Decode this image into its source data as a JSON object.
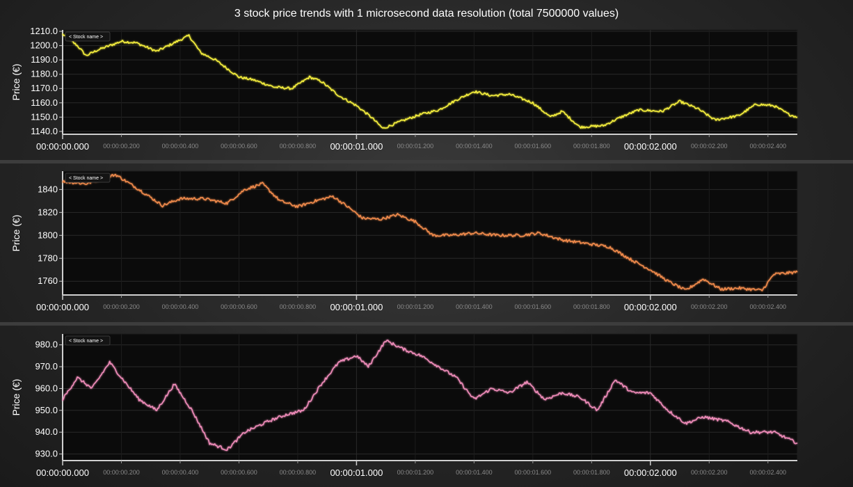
{
  "title": "3 stock price trends with 1 microsecond data resolution (total 7500000 values)",
  "colors": {
    "background": "#262626",
    "plot_background": "#0b0b0b",
    "grid": "#2a2a2a",
    "axis": "#cfcfcf",
    "separator": "#3c3c3c"
  },
  "chart_data": [
    {
      "type": "line",
      "ylabel": "Price (€)",
      "legend_label": "< Stock name >",
      "legend_position": "top-left",
      "grid": true,
      "color": "#f5ef3c",
      "xlim": [
        0,
        2.5
      ],
      "ylim": [
        1138,
        1211
      ],
      "yticks": [
        1140.0,
        1150.0,
        1160.0,
        1170.0,
        1180.0,
        1190.0,
        1200.0,
        1210.0
      ],
      "ytick_labels": [
        "1140.0",
        "1150.0",
        "1160.0",
        "1170.0",
        "1180.0",
        "1190.0",
        "1200.0",
        "1210.0"
      ],
      "x": [
        0,
        0.05,
        0.08,
        0.12,
        0.2,
        0.25,
        0.32,
        0.38,
        0.43,
        0.47,
        0.52,
        0.56,
        0.6,
        0.65,
        0.72,
        0.78,
        0.84,
        0.88,
        0.94,
        1.0,
        1.05,
        1.09,
        1.15,
        1.22,
        1.28,
        1.34,
        1.4,
        1.46,
        1.52,
        1.6,
        1.66,
        1.7,
        1.76,
        1.84,
        1.9,
        1.96,
        2.04,
        2.1,
        2.16,
        2.22,
        2.3,
        2.36,
        2.42,
        2.47,
        2.5
      ],
      "y": [
        1208,
        1200,
        1193,
        1197,
        1203,
        1202,
        1196,
        1202,
        1207,
        1195,
        1190,
        1184,
        1178,
        1176,
        1171,
        1170,
        1178,
        1175,
        1165,
        1158,
        1150,
        1142,
        1147,
        1152,
        1155,
        1162,
        1168,
        1165,
        1166,
        1160,
        1150,
        1154,
        1143,
        1144,
        1150,
        1155,
        1154,
        1161,
        1156,
        1148,
        1151,
        1159,
        1158,
        1152,
        1150
      ]
    },
    {
      "type": "line",
      "ylabel": "Price (€)",
      "legend_label": "< Stock name >",
      "legend_position": "top-left",
      "grid": true,
      "color": "#f08a4b",
      "xlim": [
        0,
        2.5
      ],
      "ylim": [
        1748,
        1856
      ],
      "yticks": [
        1760,
        1780,
        1800,
        1820,
        1840
      ],
      "ytick_labels": [
        "1760",
        "1780",
        "1800",
        "1820",
        "1840"
      ],
      "x": [
        0,
        0.08,
        0.18,
        0.26,
        0.34,
        0.4,
        0.48,
        0.56,
        0.62,
        0.68,
        0.74,
        0.8,
        0.86,
        0.92,
        0.97,
        1.02,
        1.08,
        1.14,
        1.2,
        1.26,
        1.32,
        1.4,
        1.48,
        1.56,
        1.62,
        1.7,
        1.78,
        1.86,
        1.94,
        2.0,
        2.06,
        2.12,
        2.18,
        2.24,
        2.3,
        2.38,
        2.42,
        2.5
      ],
      "y": [
        1847,
        1845,
        1853,
        1840,
        1826,
        1832,
        1832,
        1828,
        1840,
        1845,
        1830,
        1825,
        1830,
        1834,
        1825,
        1815,
        1814,
        1818,
        1812,
        1800,
        1800,
        1802,
        1800,
        1800,
        1802,
        1796,
        1793,
        1790,
        1778,
        1770,
        1760,
        1752,
        1762,
        1753,
        1754,
        1752,
        1766,
        1768
      ]
    },
    {
      "type": "line",
      "ylabel": "Price (€)",
      "legend_label": "< Stock name >",
      "legend_position": "top-left",
      "grid": true,
      "color": "#f08cba",
      "xlim": [
        0,
        2.5
      ],
      "ylim": [
        927,
        985
      ],
      "yticks": [
        930.0,
        940.0,
        950.0,
        960.0,
        970.0,
        980.0
      ],
      "ytick_labels": [
        "930.0",
        "940.0",
        "950.0",
        "960.0",
        "970.0",
        "980.0"
      ],
      "x": [
        0,
        0.05,
        0.1,
        0.16,
        0.2,
        0.26,
        0.32,
        0.38,
        0.44,
        0.5,
        0.56,
        0.62,
        0.7,
        0.76,
        0.82,
        0.88,
        0.94,
        1.0,
        1.04,
        1.1,
        1.16,
        1.22,
        1.28,
        1.34,
        1.4,
        1.46,
        1.52,
        1.58,
        1.64,
        1.7,
        1.76,
        1.82,
        1.88,
        1.94,
        2.0,
        2.06,
        2.12,
        2.18,
        2.26,
        2.34,
        2.42,
        2.5
      ],
      "y": [
        955,
        965,
        960,
        972,
        965,
        955,
        950,
        962,
        950,
        935,
        932,
        940,
        945,
        948,
        950,
        962,
        972,
        975,
        970,
        982,
        978,
        975,
        970,
        965,
        955,
        960,
        958,
        963,
        955,
        958,
        956,
        950,
        964,
        958,
        958,
        950,
        944,
        947,
        945,
        940,
        940,
        935
      ]
    }
  ],
  "x_axis": {
    "major_ticks": [
      0,
      1,
      2
    ],
    "major_labels": [
      "00:00:00.000",
      "00:00:01.000",
      "00:00:02.000"
    ],
    "minor_ticks": [
      0.2,
      0.4,
      0.6,
      0.8,
      1.2,
      1.4,
      1.6,
      1.8,
      2.2,
      2.4
    ],
    "minor_labels": [
      "00:00:00.200",
      "00:00:00.400",
      "00:00:00.600",
      "00:00:00.800",
      "00:00:01.200",
      "00:00:01.400",
      "00:00:01.600",
      "00:00:01.800",
      "00:00:02.200",
      "00:00:02.400"
    ]
  }
}
